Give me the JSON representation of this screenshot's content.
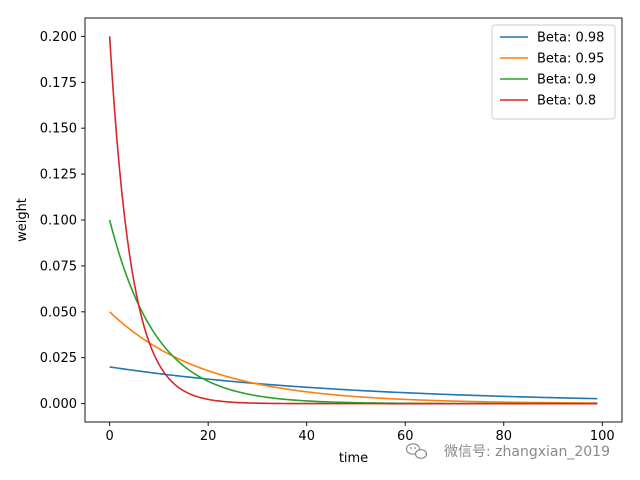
{
  "chart_data": {
    "type": "line",
    "title": "",
    "xlabel": "time",
    "ylabel": "weight",
    "xlim": [
      -5,
      104
    ],
    "ylim": [
      -0.01,
      0.21
    ],
    "x_ticks": [
      0,
      20,
      40,
      60,
      80,
      100
    ],
    "x_tick_labels": [
      "0",
      "20",
      "40",
      "60",
      "80",
      "100"
    ],
    "y_ticks": [
      0.0,
      0.025,
      0.05,
      0.075,
      0.1,
      0.125,
      0.15,
      0.175,
      0.2
    ],
    "y_tick_labels": [
      "0.000",
      "0.025",
      "0.050",
      "0.075",
      "0.100",
      "0.125",
      "0.150",
      "0.175",
      "0.200"
    ],
    "grid": false,
    "legend_position": "top-right",
    "x_range": [
      0,
      99
    ],
    "series": [
      {
        "name": "Beta: 0.98",
        "beta": 0.98,
        "color": "#1f77b4"
      },
      {
        "name": "Beta: 0.95",
        "beta": 0.95,
        "color": "#ff7f0e"
      },
      {
        "name": "Beta: 0.9",
        "beta": 0.9,
        "color": "#2ca02c"
      },
      {
        "name": "Beta: 0.8",
        "beta": 0.8,
        "color": "#d62728"
      }
    ]
  },
  "watermark": {
    "text": "微信号: zhangxian_2019",
    "icon": "wechat-icon"
  }
}
